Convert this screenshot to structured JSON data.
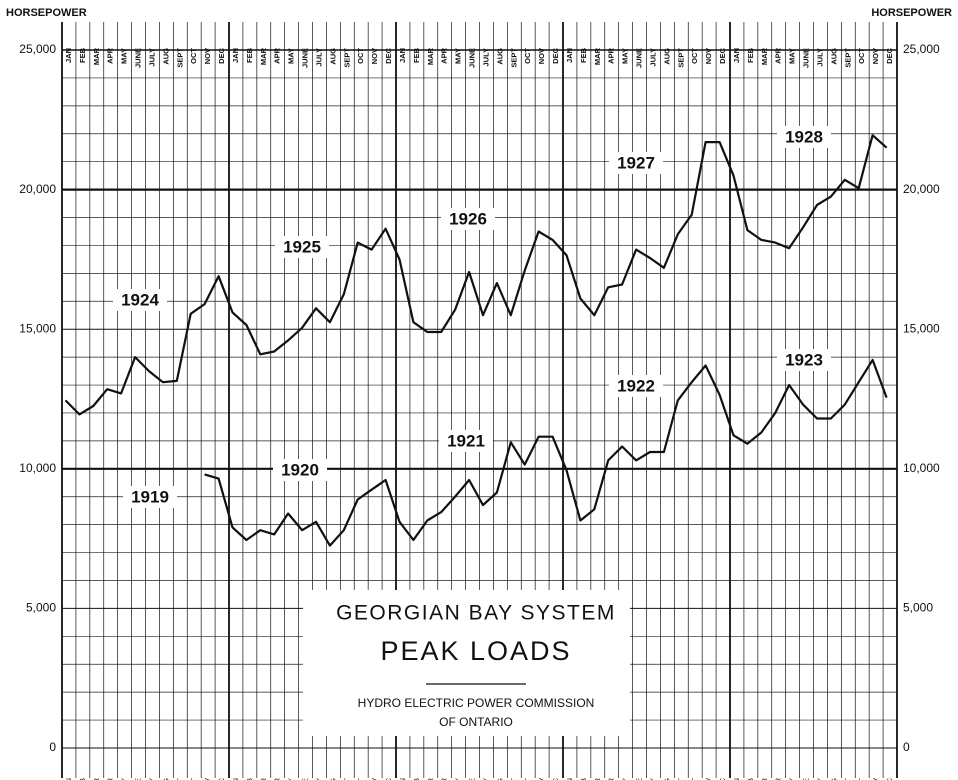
{
  "chart_data": {
    "type": "line",
    "title": "GEORGIAN BAY SYSTEM",
    "subtitle": "PEAK LOADS",
    "source": [
      "HYDRO ELECTRIC POWER COMMISSION",
      "OF ONTARIO"
    ],
    "y_label": "HORSEPOWER",
    "categories": [
      "JAN",
      "FEB",
      "MAR",
      "APR",
      "MAY",
      "JUNE",
      "JULY",
      "AUG",
      "SEPT",
      "OCT",
      "NOV",
      "DEC",
      "JAN",
      "FEB",
      "MAR",
      "APR",
      "MAY",
      "JUNE",
      "JULY",
      "AUG",
      "SEPT",
      "OCT",
      "NOV",
      "DEC",
      "JAN",
      "FEB",
      "MAR",
      "APR",
      "MAY",
      "JUNE",
      "JULY",
      "AUG",
      "SEPT",
      "OCT",
      "NOV",
      "DEC",
      "JAN",
      "FEB",
      "MAR",
      "APR",
      "MAY",
      "JUNE",
      "JULY",
      "AUG",
      "SEPT",
      "OCT",
      "NOV",
      "DEC",
      "JAN",
      "FEB",
      "MAR",
      "APR",
      "MAY",
      "JUNE",
      "JULY",
      "AUG",
      "SEPT",
      "OCT",
      "NOV",
      "DEC"
    ],
    "series": [
      {
        "color": "#111111",
        "values": [
          12450,
          11950,
          12250,
          12850,
          12700,
          14000,
          13500,
          13100,
          13150,
          15550,
          15900,
          16900,
          15600,
          15150,
          14100,
          14200,
          14600,
          15050,
          15750,
          15250,
          16250,
          18100,
          17850,
          18600,
          17500,
          15250,
          14900,
          14900,
          15700,
          17050,
          15500,
          16650,
          15500,
          17100,
          18500,
          18200,
          17650,
          16100,
          15500,
          16500,
          16600,
          17850,
          17550,
          17200,
          18400,
          19100,
          21700,
          21700,
          20500,
          18550,
          18200,
          18100,
          17900,
          18650,
          19450,
          19750,
          20350,
          20050,
          21950,
          21500
        ]
      },
      {
        "color": "#111111",
        "values": [
          null,
          null,
          null,
          null,
          null,
          null,
          null,
          null,
          null,
          null,
          9800,
          9650,
          7900,
          7450,
          7800,
          7650,
          8400,
          7800,
          8100,
          7250,
          7800,
          8900,
          9250,
          9600,
          8100,
          7450,
          8150,
          8450,
          9000,
          9600,
          8700,
          9150,
          10950,
          10150,
          11150,
          11150,
          9950,
          8150,
          8550,
          10300,
          10800,
          10300,
          10600,
          10600,
          12450,
          13100,
          13700,
          12650,
          11200,
          10900,
          11300,
          12000,
          13000,
          12300,
          11800,
          11800,
          12300,
          13100,
          13900,
          12550
        ]
      }
    ],
    "annotations": [
      "1919",
      "1920",
      "1921",
      "1922",
      "1923",
      "1924",
      "1925",
      "1926",
      "1927",
      "1928"
    ],
    "ylim": [
      0,
      25000
    ],
    "yticks": [
      0,
      {
        "value": 5000,
        "label": "5,000"
      },
      {
        "value": 10000,
        "label": "10,000"
      },
      {
        "value": 15000,
        "label": "15,000"
      },
      {
        "value": 20000,
        "label": "20,000"
      },
      {
        "value": 25000,
        "label": "25,000"
      }
    ],
    "minor_yticks": [
      1000,
      2000,
      3000,
      4000,
      6000,
      7000,
      8000,
      9000,
      11000,
      12000,
      13000,
      14000,
      16000,
      17000,
      18000,
      19000,
      21000,
      22000,
      23000,
      24000
    ],
    "grid": true
  }
}
